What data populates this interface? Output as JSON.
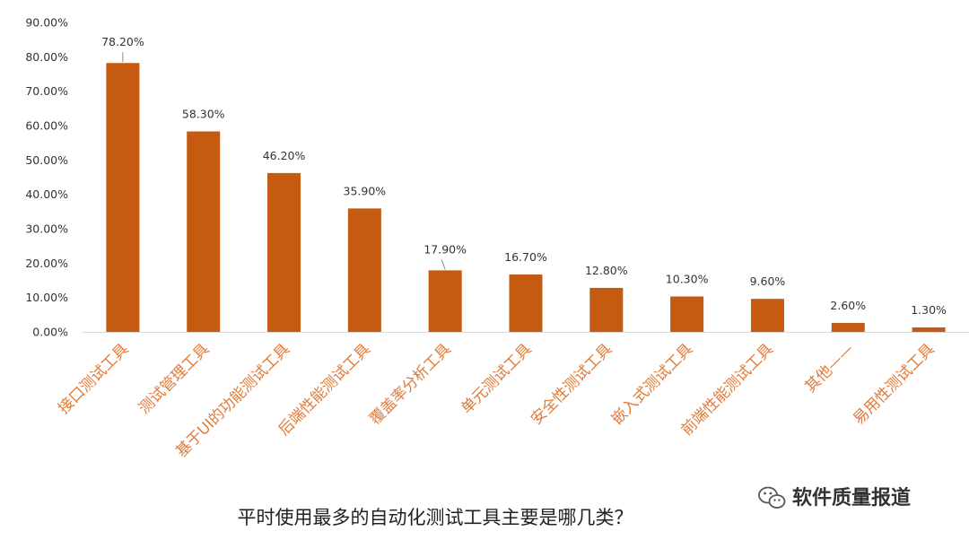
{
  "chart_data": {
    "type": "bar",
    "title": "平时使用最多的自动化测试工具主要是哪几类？",
    "categories": [
      "接口测试工具",
      "测试管理工具",
      "基于UI的功能测试工具",
      "后端性能测试工具",
      "覆盖率分析工具",
      "单元测试工具",
      "安全性测试工具",
      "嵌入式测试工具",
      "前端性能测试工具",
      "其他——",
      "易用性测试工具"
    ],
    "values": [
      78.2,
      58.3,
      46.2,
      35.9,
      17.9,
      16.7,
      12.8,
      10.3,
      9.6,
      2.6,
      1.3
    ],
    "value_labels": [
      "78.20%",
      "58.30%",
      "46.20%",
      "35.90%",
      "17.90%",
      "16.70%",
      "12.80%",
      "10.30%",
      "9.60%",
      "2.60%",
      "1.30%"
    ],
    "y_ticks": [
      0,
      10,
      20,
      30,
      40,
      50,
      60,
      70,
      80,
      90
    ],
    "y_tick_labels": [
      "0.00%",
      "10.00%",
      "20.00%",
      "30.00%",
      "40.00%",
      "50.00%",
      "60.00%",
      "70.00%",
      "80.00%",
      "90.00%"
    ],
    "ylim": [
      0,
      90
    ],
    "grid": false,
    "xlabel": "",
    "ylabel": "",
    "colors": {
      "bar": "#c55a11",
      "category_label": "#e07b3a",
      "axis": "#d9d9d9",
      "text": "#333333"
    }
  },
  "watermark": {
    "text": "软件质量报道",
    "icon": "wechat-icon"
  }
}
